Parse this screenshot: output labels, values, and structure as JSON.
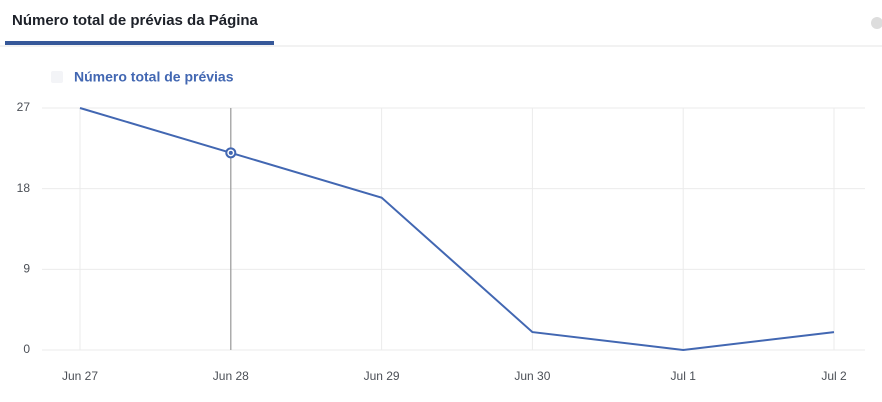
{
  "chart_data": {
    "type": "line",
    "tab_title": "Número total de prévias da Página",
    "categories": [
      "Jun 27",
      "Jun 28",
      "Jun 29",
      "Jun 30",
      "Jul 1",
      "Jul 2"
    ],
    "series": [
      {
        "name": "Número total de prévias",
        "color": "#4267b2",
        "values": [
          27,
          22,
          17,
          2,
          0,
          2
        ]
      }
    ],
    "ylim": [
      0,
      27
    ],
    "yticks": [
      0,
      9,
      18,
      27
    ],
    "grid": true
  }
}
